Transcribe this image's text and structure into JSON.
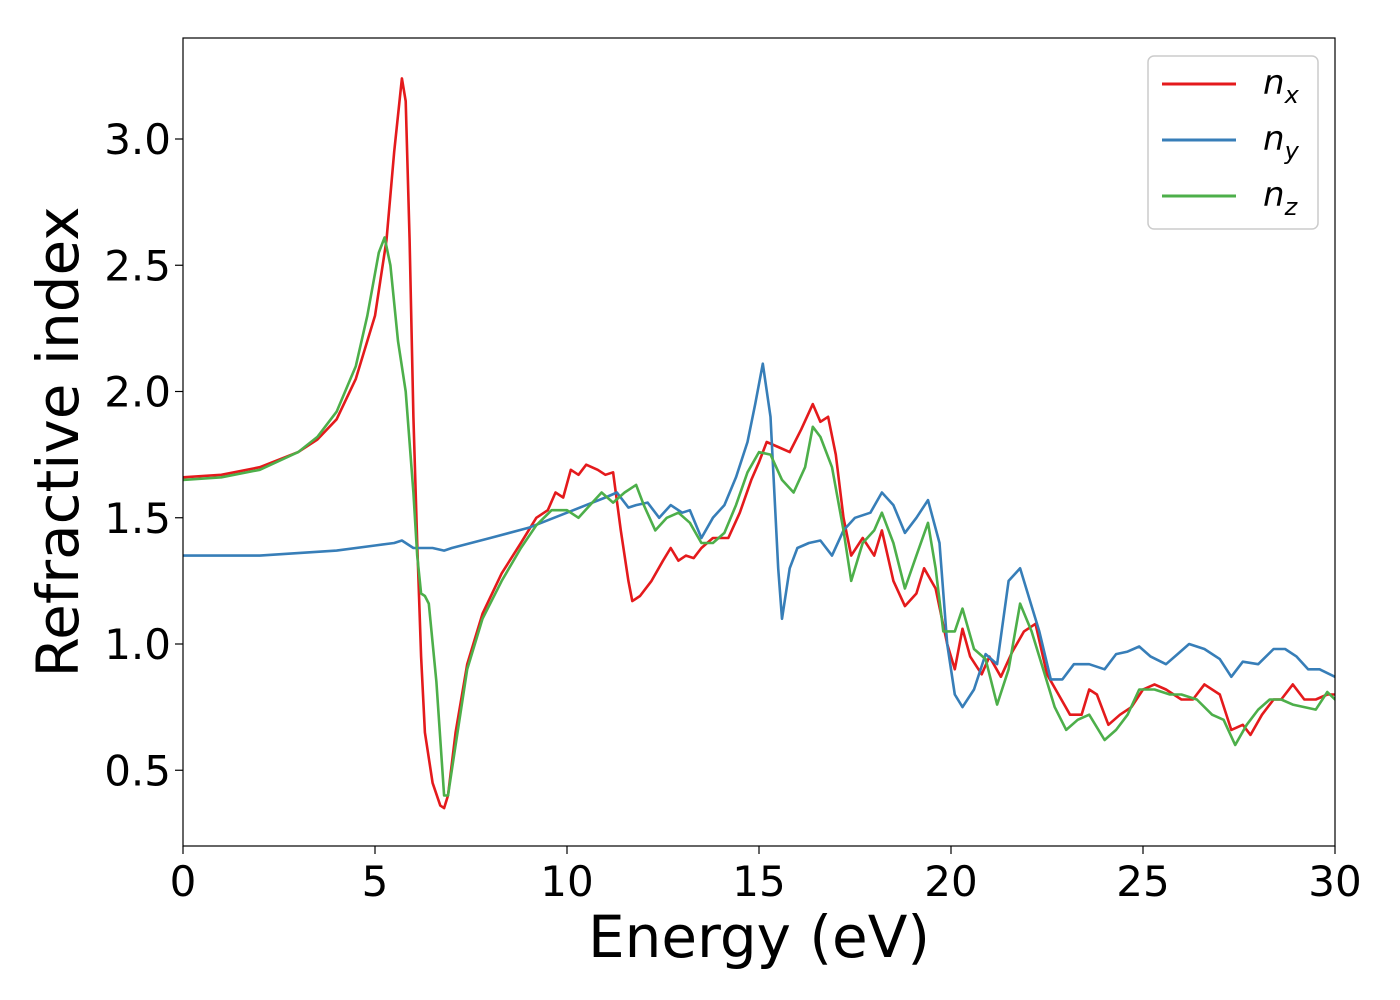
{
  "chart_data": {
    "type": "line",
    "xlabel": "Energy (eV)",
    "ylabel": "Refractive index",
    "xlim": [
      0,
      30
    ],
    "ylim": [
      0.2,
      3.4
    ],
    "x_ticks": [
      0,
      5,
      10,
      15,
      20,
      25,
      30
    ],
    "y_ticks": [
      0.5,
      1.0,
      1.5,
      2.0,
      2.5,
      3.0
    ],
    "x_tick_labels": [
      "0",
      "5",
      "10",
      "15",
      "20",
      "25",
      "30"
    ],
    "y_tick_labels": [
      "0.5",
      "1.0",
      "1.5",
      "2.0",
      "2.5",
      "3.0"
    ],
    "grid": false,
    "legend_position": "top-right",
    "series": [
      {
        "name": "n_x",
        "label_main": "n",
        "label_sub": "x",
        "color": "#e41a1c",
        "points": [
          [
            0,
            1.66
          ],
          [
            1,
            1.67
          ],
          [
            2,
            1.7
          ],
          [
            3,
            1.76
          ],
          [
            3.5,
            1.81
          ],
          [
            4,
            1.89
          ],
          [
            4.5,
            2.05
          ],
          [
            5,
            2.3
          ],
          [
            5.3,
            2.6
          ],
          [
            5.5,
            2.95
          ],
          [
            5.7,
            3.24
          ],
          [
            5.8,
            3.15
          ],
          [
            5.9,
            2.6
          ],
          [
            6.0,
            1.9
          ],
          [
            6.1,
            1.4
          ],
          [
            6.2,
            0.95
          ],
          [
            6.3,
            0.65
          ],
          [
            6.5,
            0.45
          ],
          [
            6.7,
            0.36
          ],
          [
            6.8,
            0.35
          ],
          [
            6.9,
            0.4
          ],
          [
            7.1,
            0.65
          ],
          [
            7.4,
            0.92
          ],
          [
            7.8,
            1.12
          ],
          [
            8.3,
            1.28
          ],
          [
            8.8,
            1.4
          ],
          [
            9.2,
            1.5
          ],
          [
            9.5,
            1.53
          ],
          [
            9.7,
            1.6
          ],
          [
            9.9,
            1.58
          ],
          [
            10.1,
            1.69
          ],
          [
            10.3,
            1.67
          ],
          [
            10.5,
            1.71
          ],
          [
            10.8,
            1.69
          ],
          [
            11.0,
            1.67
          ],
          [
            11.2,
            1.68
          ],
          [
            11.4,
            1.45
          ],
          [
            11.6,
            1.25
          ],
          [
            11.7,
            1.17
          ],
          [
            11.9,
            1.19
          ],
          [
            12.2,
            1.25
          ],
          [
            12.5,
            1.33
          ],
          [
            12.7,
            1.38
          ],
          [
            12.9,
            1.33
          ],
          [
            13.1,
            1.35
          ],
          [
            13.3,
            1.34
          ],
          [
            13.5,
            1.38
          ],
          [
            13.8,
            1.42
          ],
          [
            14.2,
            1.42
          ],
          [
            14.5,
            1.52
          ],
          [
            14.8,
            1.65
          ],
          [
            15.0,
            1.72
          ],
          [
            15.2,
            1.8
          ],
          [
            15.5,
            1.78
          ],
          [
            15.8,
            1.76
          ],
          [
            16.1,
            1.85
          ],
          [
            16.4,
            1.95
          ],
          [
            16.6,
            1.88
          ],
          [
            16.8,
            1.9
          ],
          [
            17.0,
            1.75
          ],
          [
            17.2,
            1.5
          ],
          [
            17.4,
            1.35
          ],
          [
            17.7,
            1.42
          ],
          [
            18.0,
            1.35
          ],
          [
            18.2,
            1.45
          ],
          [
            18.5,
            1.25
          ],
          [
            18.8,
            1.15
          ],
          [
            19.1,
            1.2
          ],
          [
            19.3,
            1.3
          ],
          [
            19.6,
            1.22
          ],
          [
            19.9,
            1.0
          ],
          [
            20.1,
            0.9
          ],
          [
            20.3,
            1.06
          ],
          [
            20.5,
            0.95
          ],
          [
            20.8,
            0.88
          ],
          [
            21.0,
            0.95
          ],
          [
            21.3,
            0.87
          ],
          [
            21.6,
            0.97
          ],
          [
            21.9,
            1.05
          ],
          [
            22.2,
            1.08
          ],
          [
            22.5,
            0.88
          ],
          [
            22.8,
            0.8
          ],
          [
            23.1,
            0.72
          ],
          [
            23.4,
            0.72
          ],
          [
            23.6,
            0.82
          ],
          [
            23.8,
            0.8
          ],
          [
            24.1,
            0.68
          ],
          [
            24.4,
            0.72
          ],
          [
            24.7,
            0.75
          ],
          [
            25.0,
            0.82
          ],
          [
            25.3,
            0.84
          ],
          [
            25.6,
            0.82
          ],
          [
            26.0,
            0.78
          ],
          [
            26.3,
            0.78
          ],
          [
            26.6,
            0.84
          ],
          [
            27.0,
            0.8
          ],
          [
            27.3,
            0.66
          ],
          [
            27.6,
            0.68
          ],
          [
            27.8,
            0.64
          ],
          [
            28.1,
            0.72
          ],
          [
            28.4,
            0.78
          ],
          [
            28.6,
            0.78
          ],
          [
            28.9,
            0.84
          ],
          [
            29.2,
            0.78
          ],
          [
            29.5,
            0.78
          ],
          [
            29.8,
            0.8
          ],
          [
            30.0,
            0.8
          ]
        ]
      },
      {
        "name": "n_y",
        "label_main": "n",
        "label_sub": "y",
        "color": "#377eb8",
        "points": [
          [
            0,
            1.35
          ],
          [
            2,
            1.35
          ],
          [
            4,
            1.37
          ],
          [
            5,
            1.39
          ],
          [
            5.5,
            1.4
          ],
          [
            5.7,
            1.41
          ],
          [
            6.0,
            1.38
          ],
          [
            6.5,
            1.38
          ],
          [
            6.8,
            1.37
          ],
          [
            7.0,
            1.38
          ],
          [
            8,
            1.42
          ],
          [
            9,
            1.46
          ],
          [
            10,
            1.52
          ],
          [
            10.5,
            1.55
          ],
          [
            11,
            1.58
          ],
          [
            11.3,
            1.6
          ],
          [
            11.6,
            1.54
          ],
          [
            11.8,
            1.55
          ],
          [
            12.1,
            1.56
          ],
          [
            12.4,
            1.5
          ],
          [
            12.7,
            1.55
          ],
          [
            13.0,
            1.52
          ],
          [
            13.2,
            1.53
          ],
          [
            13.5,
            1.42
          ],
          [
            13.8,
            1.5
          ],
          [
            14.1,
            1.55
          ],
          [
            14.4,
            1.66
          ],
          [
            14.7,
            1.8
          ],
          [
            14.9,
            1.95
          ],
          [
            15.1,
            2.11
          ],
          [
            15.3,
            1.9
          ],
          [
            15.5,
            1.3
          ],
          [
            15.6,
            1.1
          ],
          [
            15.8,
            1.3
          ],
          [
            16.0,
            1.38
          ],
          [
            16.3,
            1.4
          ],
          [
            16.6,
            1.41
          ],
          [
            16.9,
            1.35
          ],
          [
            17.2,
            1.45
          ],
          [
            17.5,
            1.5
          ],
          [
            17.9,
            1.52
          ],
          [
            18.2,
            1.6
          ],
          [
            18.5,
            1.55
          ],
          [
            18.8,
            1.44
          ],
          [
            19.1,
            1.5
          ],
          [
            19.4,
            1.57
          ],
          [
            19.7,
            1.4
          ],
          [
            19.9,
            1.0
          ],
          [
            20.1,
            0.8
          ],
          [
            20.3,
            0.75
          ],
          [
            20.6,
            0.82
          ],
          [
            20.9,
            0.96
          ],
          [
            21.2,
            0.92
          ],
          [
            21.5,
            1.25
          ],
          [
            21.8,
            1.3
          ],
          [
            22.1,
            1.15
          ],
          [
            22.3,
            1.05
          ],
          [
            22.6,
            0.86
          ],
          [
            22.9,
            0.86
          ],
          [
            23.2,
            0.92
          ],
          [
            23.6,
            0.92
          ],
          [
            24.0,
            0.9
          ],
          [
            24.3,
            0.96
          ],
          [
            24.6,
            0.97
          ],
          [
            24.9,
            0.99
          ],
          [
            25.2,
            0.95
          ],
          [
            25.6,
            0.92
          ],
          [
            25.9,
            0.96
          ],
          [
            26.2,
            1.0
          ],
          [
            26.6,
            0.98
          ],
          [
            27.0,
            0.94
          ],
          [
            27.3,
            0.87
          ],
          [
            27.6,
            0.93
          ],
          [
            28.0,
            0.92
          ],
          [
            28.4,
            0.98
          ],
          [
            28.7,
            0.98
          ],
          [
            29.0,
            0.95
          ],
          [
            29.3,
            0.9
          ],
          [
            29.6,
            0.9
          ],
          [
            30.0,
            0.87
          ]
        ]
      },
      {
        "name": "n_z",
        "label_main": "n",
        "label_sub": "z",
        "color": "#4daf4a",
        "points": [
          [
            0,
            1.65
          ],
          [
            1,
            1.66
          ],
          [
            2,
            1.69
          ],
          [
            3,
            1.76
          ],
          [
            3.5,
            1.82
          ],
          [
            4,
            1.92
          ],
          [
            4.5,
            2.1
          ],
          [
            4.8,
            2.3
          ],
          [
            5.1,
            2.55
          ],
          [
            5.25,
            2.61
          ],
          [
            5.4,
            2.5
          ],
          [
            5.6,
            2.2
          ],
          [
            5.8,
            2.0
          ],
          [
            6.0,
            1.6
          ],
          [
            6.1,
            1.35
          ],
          [
            6.2,
            1.2
          ],
          [
            6.3,
            1.19
          ],
          [
            6.4,
            1.16
          ],
          [
            6.6,
            0.85
          ],
          [
            6.8,
            0.4
          ],
          [
            6.9,
            0.4
          ],
          [
            7.1,
            0.6
          ],
          [
            7.4,
            0.9
          ],
          [
            7.8,
            1.1
          ],
          [
            8.3,
            1.25
          ],
          [
            8.8,
            1.38
          ],
          [
            9.2,
            1.47
          ],
          [
            9.6,
            1.53
          ],
          [
            10.0,
            1.53
          ],
          [
            10.3,
            1.5
          ],
          [
            10.6,
            1.55
          ],
          [
            10.9,
            1.6
          ],
          [
            11.2,
            1.56
          ],
          [
            11.5,
            1.6
          ],
          [
            11.8,
            1.63
          ],
          [
            12.0,
            1.55
          ],
          [
            12.3,
            1.45
          ],
          [
            12.6,
            1.5
          ],
          [
            12.9,
            1.52
          ],
          [
            13.2,
            1.48
          ],
          [
            13.5,
            1.4
          ],
          [
            13.8,
            1.4
          ],
          [
            14.1,
            1.44
          ],
          [
            14.4,
            1.55
          ],
          [
            14.7,
            1.68
          ],
          [
            15.0,
            1.76
          ],
          [
            15.3,
            1.75
          ],
          [
            15.6,
            1.65
          ],
          [
            15.9,
            1.6
          ],
          [
            16.2,
            1.7
          ],
          [
            16.4,
            1.86
          ],
          [
            16.6,
            1.82
          ],
          [
            16.9,
            1.7
          ],
          [
            17.2,
            1.45
          ],
          [
            17.4,
            1.25
          ],
          [
            17.7,
            1.4
          ],
          [
            18.0,
            1.45
          ],
          [
            18.2,
            1.52
          ],
          [
            18.5,
            1.4
          ],
          [
            18.8,
            1.22
          ],
          [
            19.1,
            1.35
          ],
          [
            19.4,
            1.48
          ],
          [
            19.6,
            1.3
          ],
          [
            19.8,
            1.05
          ],
          [
            20.1,
            1.05
          ],
          [
            20.3,
            1.14
          ],
          [
            20.6,
            0.98
          ],
          [
            20.9,
            0.94
          ],
          [
            21.2,
            0.76
          ],
          [
            21.5,
            0.9
          ],
          [
            21.8,
            1.16
          ],
          [
            22.1,
            1.05
          ],
          [
            22.4,
            0.9
          ],
          [
            22.7,
            0.75
          ],
          [
            23.0,
            0.66
          ],
          [
            23.3,
            0.7
          ],
          [
            23.6,
            0.72
          ],
          [
            24.0,
            0.62
          ],
          [
            24.3,
            0.66
          ],
          [
            24.6,
            0.72
          ],
          [
            24.9,
            0.82
          ],
          [
            25.3,
            0.82
          ],
          [
            25.7,
            0.8
          ],
          [
            26.0,
            0.8
          ],
          [
            26.4,
            0.78
          ],
          [
            26.8,
            0.72
          ],
          [
            27.1,
            0.7
          ],
          [
            27.4,
            0.6
          ],
          [
            27.7,
            0.68
          ],
          [
            28.0,
            0.74
          ],
          [
            28.3,
            0.78
          ],
          [
            28.6,
            0.78
          ],
          [
            28.9,
            0.76
          ],
          [
            29.2,
            0.75
          ],
          [
            29.5,
            0.74
          ],
          [
            29.8,
            0.81
          ],
          [
            30.0,
            0.78
          ]
        ]
      }
    ]
  }
}
